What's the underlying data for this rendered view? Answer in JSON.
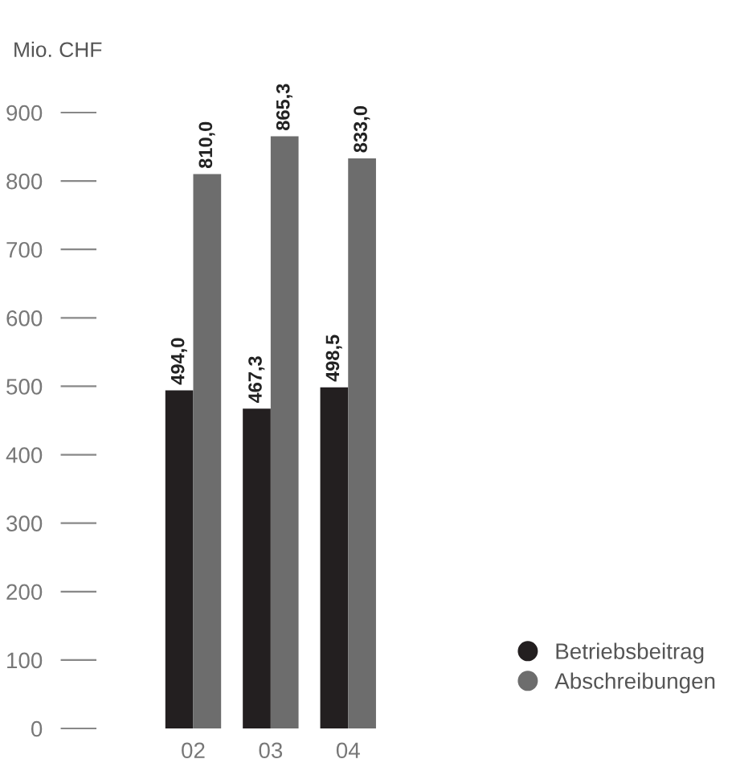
{
  "chart_data": {
    "type": "bar",
    "ylabel": "Mio. CHF",
    "categories": [
      "02",
      "03",
      "04"
    ],
    "series": [
      {
        "name": "Betriebsbeitrag",
        "color": "#231f20",
        "values": [
          494.0,
          467.3,
          498.5
        ],
        "value_labels": [
          "494,0",
          "467,3",
          "498,5"
        ]
      },
      {
        "name": "Abschreibungen",
        "color": "#6d6d6d",
        "values": [
          810.0,
          865.3,
          833.0
        ],
        "value_labels": [
          "810,0",
          "865,3",
          "833,0"
        ]
      }
    ],
    "ylim": [
      0,
      900
    ],
    "yticks": [
      0,
      100,
      200,
      300,
      400,
      500,
      600,
      700,
      800,
      900
    ],
    "grid": false,
    "legend": "bottom right",
    "marker": "circle"
  }
}
